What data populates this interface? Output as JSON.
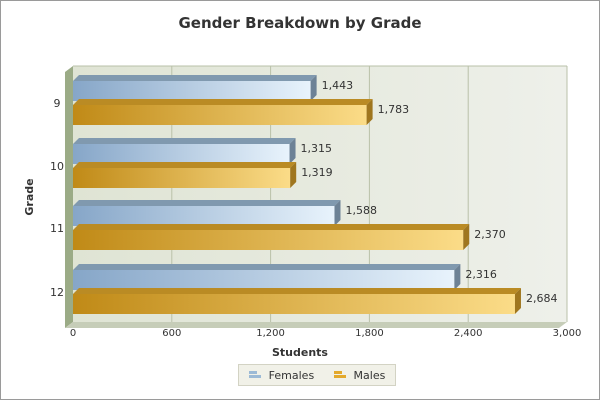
{
  "chart_data": {
    "type": "bar",
    "orientation": "horizontal",
    "title": "Gender Breakdown by Grade",
    "xlabel": "Students",
    "ylabel": "Grade",
    "categories": [
      "9",
      "10",
      "11",
      "12"
    ],
    "series": [
      {
        "name": "Females",
        "values": [
          1443,
          1315,
          1588,
          2316
        ],
        "data_labels": [
          "1,443",
          "1,315",
          "1,588",
          "2,316"
        ],
        "color": "#9cbad6"
      },
      {
        "name": "Males",
        "values": [
          1783,
          1319,
          2370,
          2684
        ],
        "data_labels": [
          "1,783",
          "1,319",
          "2,370",
          "2,684"
        ],
        "color": "#e3a92c"
      }
    ],
    "xlim": [
      0,
      3000
    ],
    "xticks": [
      0,
      600,
      1200,
      1800,
      2400,
      3000
    ],
    "xtick_labels": [
      "0",
      "600",
      "1,200",
      "1,800",
      "2,400",
      "3,000"
    ],
    "grid": "vertical",
    "legend_position": "bottom-center"
  },
  "colors": {
    "females": "#9cbad6",
    "males": "#e3a92c",
    "plot_background": "#e9ece3",
    "title": "#333333"
  }
}
